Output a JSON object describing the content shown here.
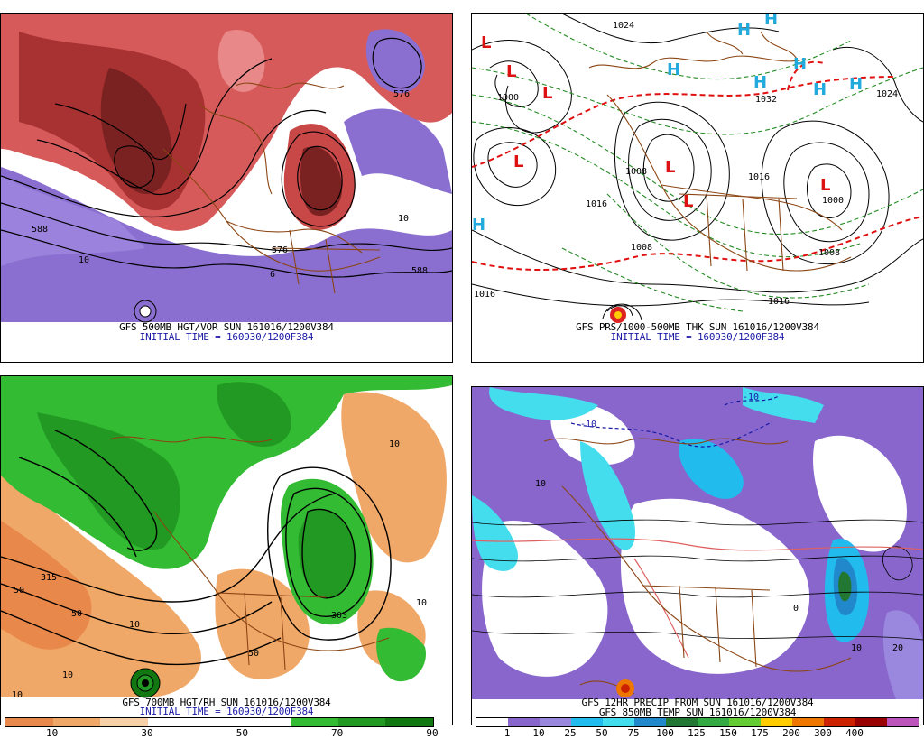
{
  "panels": {
    "top_left": {
      "title": "GFS 500MB HGT/VOR SUN 161016/1200V384",
      "initial_time": "INITIAL TIME = 160930/1200F384",
      "contour_labels": [
        "588",
        "576",
        "576",
        "6",
        "10",
        "10",
        "588"
      ]
    },
    "top_right": {
      "title": "GFS PRS/1000-500MB THK SUN 161016/1200V384",
      "initial_time": "INITIAL TIME = 160930/1200F384",
      "pressure_centers": [
        {
          "type": "L",
          "color": "#dd1111"
        },
        {
          "type": "L",
          "color": "#dd1111"
        },
        {
          "type": "L",
          "color": "#dd1111"
        },
        {
          "type": "L",
          "color": "#dd1111"
        },
        {
          "type": "L",
          "color": "#dd1111"
        },
        {
          "type": "L",
          "color": "#dd1111"
        },
        {
          "type": "L",
          "color": "#dd1111"
        },
        {
          "type": "H",
          "color": "#22aadd"
        },
        {
          "type": "H",
          "color": "#22aadd"
        },
        {
          "type": "H",
          "color": "#22aadd"
        },
        {
          "type": "H",
          "color": "#22aadd"
        },
        {
          "type": "H",
          "color": "#22aadd"
        },
        {
          "type": "H",
          "color": "#22aadd"
        },
        {
          "type": "H",
          "color": "#22aadd"
        },
        {
          "type": "H",
          "color": "#22aadd"
        }
      ],
      "isobar_labels": [
        "1024",
        "1000",
        "1032",
        "1024",
        "1008",
        "1016",
        "1016",
        "1000",
        "1008",
        "1016",
        "1008",
        "1016"
      ]
    },
    "bottom_left": {
      "title": "GFS 700MB HGT/RH SUN 161016/1200V384",
      "initial_time": "INITIAL TIME = 160930/1200F384",
      "colorbar": {
        "colors": [
          "#e8884a",
          "#f0a868",
          "#f8d0a8",
          "#ffffff",
          "#ffffff",
          "#ffffff",
          "#33bb33",
          "#229922",
          "#117711"
        ],
        "ticks": [
          "10",
          "30",
          "50",
          "70",
          "90"
        ]
      },
      "contour_labels": [
        "10",
        "10",
        "10",
        "50",
        "50",
        "10",
        "303",
        "10",
        "50",
        "315"
      ]
    },
    "bottom_right": {
      "title": "GFS 12HR PRECIP FROM SUN 161016/1200V384",
      "subtitle": "GFS 850MB TEMP SUN 161016/1200V384",
      "colorbar": {
        "colors": [
          "#ffffff",
          "#8866cc",
          "#9988dd",
          "#22bbee",
          "#44ddee",
          "#2288cc",
          "#227733",
          "#33aa44",
          "#66cc33",
          "#ffcc00",
          "#ee7700",
          "#cc2200",
          "#990000",
          "#bb55bb"
        ],
        "ticks": [
          "1",
          "10",
          "25",
          "50",
          "75",
          "100",
          "125",
          "150",
          "175",
          "200",
          "300",
          "400"
        ]
      },
      "contour_labels": [
        "-10",
        "-10",
        "10",
        "10",
        "20",
        "0"
      ]
    }
  }
}
